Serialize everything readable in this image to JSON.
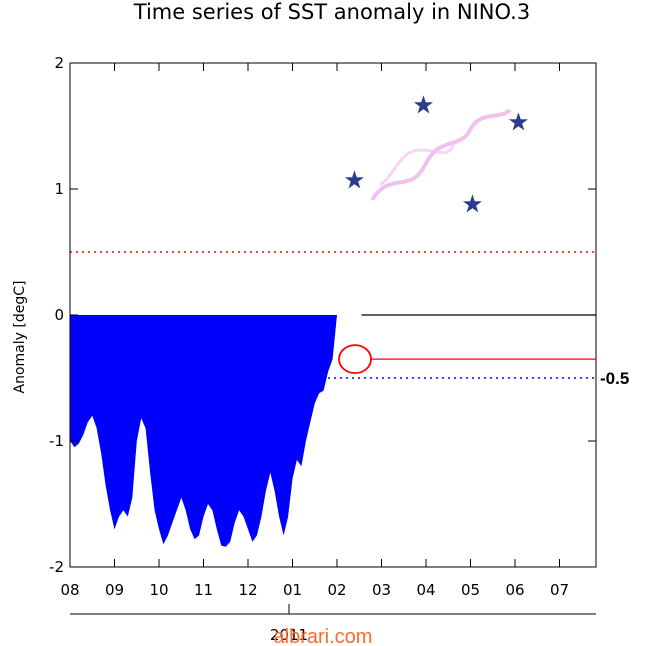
{
  "chart_data": {
    "type": "area",
    "title": "Time series of SST anomaly in NINO.3",
    "ylabel": "Anomaly [degC]",
    "xlabel": "",
    "year_label": "2011",
    "ylim": [
      -2,
      2
    ],
    "y_ticks": [
      "2",
      "1",
      "0",
      "-1",
      "-2"
    ],
    "y_tick_values": [
      2,
      1,
      0,
      -1,
      -2
    ],
    "x_ticks": [
      "08",
      "09",
      "10",
      "11",
      "12",
      "01",
      "02",
      "03",
      "04",
      "05",
      "06",
      "07"
    ],
    "series": [
      {
        "color": "#0000ff",
        "x": [
          0.0,
          0.1,
          0.2,
          0.3,
          0.4,
          0.5,
          0.6,
          0.7,
          0.8,
          0.9,
          1.0,
          1.1,
          1.2,
          1.3,
          1.4,
          1.5,
          1.6,
          1.7,
          1.8,
          1.9,
          2.0,
          2.1,
          2.2,
          2.3,
          2.4,
          2.5,
          2.6,
          2.7,
          2.8,
          2.9,
          3.0,
          3.1,
          3.2,
          3.3,
          3.4,
          3.5,
          3.6,
          3.7,
          3.8,
          3.9,
          4.0,
          4.1,
          4.2,
          4.3,
          4.4,
          4.5,
          4.6,
          4.7,
          4.8,
          4.9,
          5.0,
          5.1,
          5.2,
          5.3,
          5.4,
          5.5,
          5.6,
          5.7,
          5.8,
          5.9,
          6.0,
          6.1,
          6.2,
          6.3,
          6.4,
          6.5,
          6.6
        ],
        "values": [
          -1.0,
          -1.05,
          -1.02,
          -0.95,
          -0.85,
          -0.8,
          -0.9,
          -1.1,
          -1.35,
          -1.55,
          -1.7,
          -1.6,
          -1.55,
          -1.6,
          -1.45,
          -1.0,
          -0.82,
          -0.9,
          -1.25,
          -1.55,
          -1.7,
          -1.82,
          -1.75,
          -1.65,
          -1.55,
          -1.45,
          -1.55,
          -1.7,
          -1.78,
          -1.75,
          -1.6,
          -1.5,
          -1.55,
          -1.7,
          -1.83,
          -1.84,
          -1.8,
          -1.65,
          -1.55,
          -1.6,
          -1.7,
          -1.8,
          -1.75,
          -1.6,
          -1.4,
          -1.25,
          -1.4,
          -1.6,
          -1.75,
          -1.6,
          -1.3,
          -1.15,
          -1.2,
          -1.0,
          -0.85,
          -0.7,
          -0.62,
          -0.6,
          -0.45,
          -0.35,
          0.0,
          0.0,
          0.0,
          0.0,
          0.0,
          0.0,
          0.0
        ]
      }
    ],
    "reference_lines": [
      {
        "value": 0.5,
        "color": "#ff0000",
        "style": "dotted"
      },
      {
        "value": -0.5,
        "color": "#0000ff",
        "style": "dotted"
      },
      {
        "value": 0.0,
        "color": "#000000",
        "style": "solid"
      }
    ],
    "annotations": [
      {
        "text": "-0.5",
        "value": -0.5
      },
      {
        "text": "",
        "marker": "circle",
        "x": 6.45,
        "value": -0.35,
        "color": "#ff0000"
      }
    ],
    "watermark": "albrari.com",
    "grid": false,
    "legend": "none"
  }
}
